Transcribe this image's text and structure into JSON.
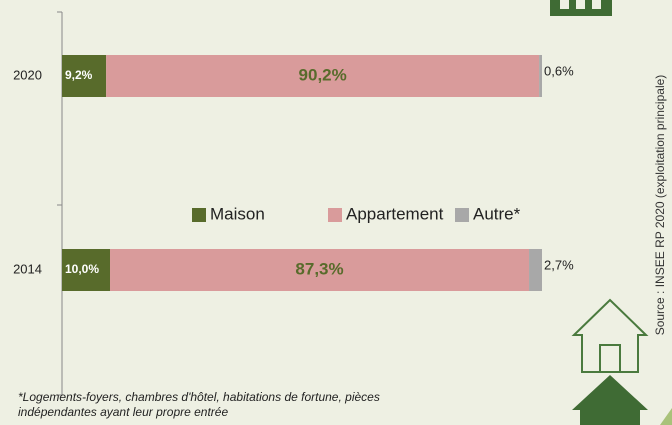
{
  "chart_data": {
    "type": "bar",
    "orientation": "horizontal",
    "stacked": true,
    "categories": [
      "2020",
      "2014"
    ],
    "series": [
      {
        "name": "Maison",
        "color": "#586b2b",
        "values": [
          9.2,
          10.0
        ],
        "value_labels": [
          "9,2%",
          "10,0%"
        ]
      },
      {
        "name": "Appartement",
        "color": "#d99b9b",
        "values": [
          90.2,
          87.3
        ],
        "value_labels": [
          "90,2%",
          "87,3%"
        ]
      },
      {
        "name": "Autre*",
        "color": "#a8a8a8",
        "values": [
          0.6,
          2.7
        ],
        "value_labels": [
          "0,6%",
          "2,7%"
        ]
      }
    ],
    "footnote": [
      "*Logements-foyers, chambres d'hôtel, habitations de fortune, pièces",
      "indépendantes ayant leur propre entrée"
    ],
    "source": "Source : INSEE RP 2020 (exploitation principale)"
  }
}
